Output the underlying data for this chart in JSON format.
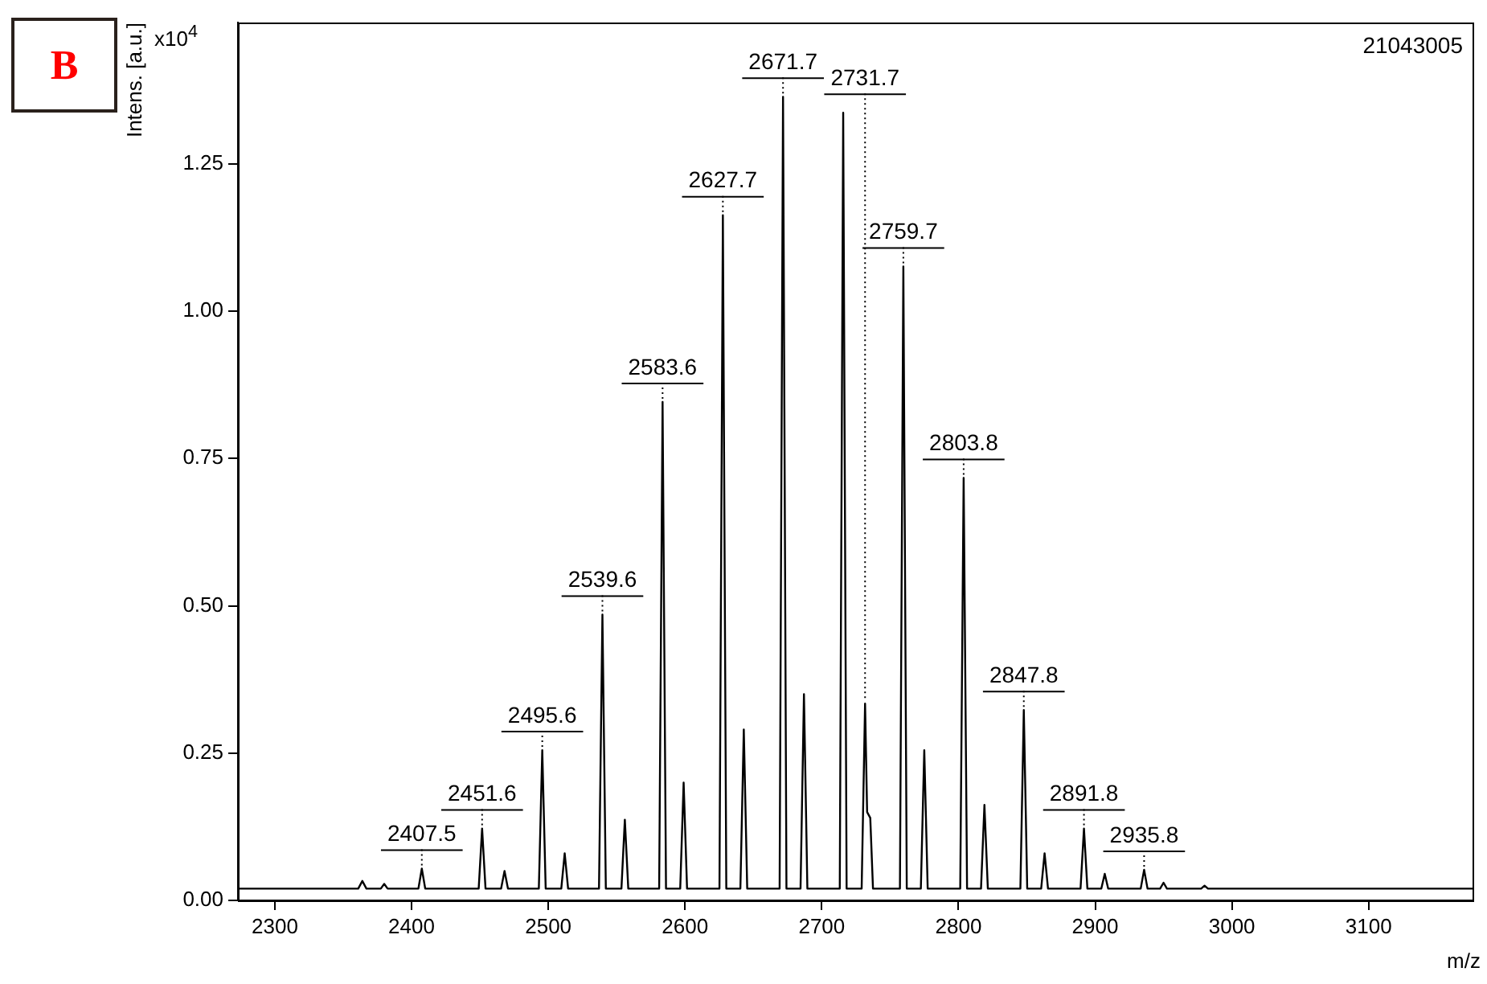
{
  "chart_data": {
    "type": "line",
    "title": "B",
    "subtitle": "21043005",
    "xlabel": "m/z",
    "ylabel": "Intens. [a.u.]",
    "xlim": [
      2273,
      3176
    ],
    "xticks": [
      2300,
      2400,
      2500,
      2600,
      2700,
      2800,
      2900,
      3000,
      3100
    ],
    "ylim": [
      0,
      1.49
    ],
    "yticks": [
      {
        "value": 0,
        "label": "0.00"
      },
      {
        "value": 0.25,
        "label": "0.25"
      },
      {
        "value": 0.5,
        "label": "0.50"
      },
      {
        "value": 0.75,
        "label": "0.75"
      },
      {
        "value": 1,
        "label": "1.00"
      },
      {
        "value": 1.25,
        "label": "1.25"
      }
    ],
    "grid": false,
    "legend": false,
    "marker": "none",
    "line_style": "solid",
    "series": [
      {
        "color": "#000000",
        "x": [
          2273,
          2361,
          2364,
          2367,
          2377.5,
          2380,
          2382.5,
          2405,
          2407.5,
          2410,
          2449.1,
          2451.6,
          2454.1,
          2465.5,
          2468,
          2470.5,
          2493.1,
          2495.6,
          2498.1,
          2509.5,
          2512,
          2514.5,
          2537.1,
          2539.6,
          2542.1,
          2553.5,
          2556,
          2558.5,
          2581.1,
          2583.6,
          2586.1,
          2596.5,
          2599,
          2601.5,
          2625.2,
          2627.7,
          2630.2,
          2640.5,
          2643,
          2645.5,
          2669.2,
          2671.7,
          2674.2,
          2684.5,
          2687,
          2689.5,
          2713.2,
          2715.7,
          2718.2,
          2729.2,
          2731.7,
          2733.2,
          2735.5,
          2737.5,
          2757.2,
          2759.7,
          2762.2,
          2772.5,
          2775,
          2777.5,
          2801.3,
          2803.8,
          2806.3,
          2816.5,
          2819,
          2821.5,
          2845.3,
          2847.8,
          2850.3,
          2860.5,
          2863,
          2865.5,
          2889.3,
          2891.8,
          2894.3,
          2904.5,
          2907,
          2909.5,
          2933.3,
          2935.8,
          2938.3,
          2947.5,
          2950,
          2952.5,
          2977.5,
          2980,
          2982.5,
          3176
        ],
        "values": [
          0.02,
          0.02,
          0.033,
          0.02,
          0.02,
          0.028,
          0.02,
          0.02,
          0.054,
          0.02,
          0.02,
          0.122,
          0.02,
          0.02,
          0.05,
          0.02,
          0.02,
          0.255,
          0.02,
          0.02,
          0.08,
          0.02,
          0.02,
          0.485,
          0.02,
          0.02,
          0.137,
          0.02,
          0.02,
          0.846,
          0.02,
          0.02,
          0.2,
          0.02,
          0.02,
          1.163,
          0.02,
          0.02,
          0.29,
          0.02,
          0.02,
          1.364,
          0.02,
          0.02,
          0.35,
          0.02,
          0.02,
          1.337,
          0.02,
          0.02,
          0.334,
          0.15,
          0.14,
          0.02,
          0.02,
          1.076,
          0.02,
          0.02,
          0.255,
          0.02,
          0.02,
          0.717,
          0.02,
          0.02,
          0.162,
          0.02,
          0.02,
          0.323,
          0.02,
          0.02,
          0.08,
          0.02,
          0.02,
          0.122,
          0.02,
          0.02,
          0.045,
          0.02,
          0.02,
          0.052,
          0.02,
          0.02,
          0.03,
          0.02,
          0.02,
          0.025,
          0.02,
          0.02
        ]
      }
    ],
    "annotations": [
      "x10$^{4}$",
      {
        "text": "2407.5",
        "x": 2407.5,
        "y": 0.054
      },
      {
        "text": "2451.6",
        "x": 2451.6,
        "y": 0.122
      },
      {
        "text": "2495.6",
        "x": 2495.6,
        "y": 0.255
      },
      {
        "text": "2539.6",
        "x": 2539.6,
        "y": 0.485
      },
      {
        "text": "2583.6",
        "x": 2583.6,
        "y": 0.846
      },
      {
        "text": "2627.7",
        "x": 2627.7,
        "y": 1.163
      },
      {
        "text": "2671.7",
        "x": 2671.7,
        "y": 1.364
      },
      {
        "text": "2731.7",
        "x": 2731.7,
        "y": 0.334
      },
      {
        "text": "2759.7",
        "x": 2759.7,
        "y": 1.076
      },
      {
        "text": "2803.8",
        "x": 2803.8,
        "y": 0.717
      },
      {
        "text": "2847.8",
        "x": 2847.8,
        "y": 0.323
      },
      {
        "text": "2891.8",
        "x": 2891.8,
        "y": 0.122
      },
      {
        "text": "2935.8",
        "x": 2935.8,
        "y": 0.052
      }
    ]
  }
}
